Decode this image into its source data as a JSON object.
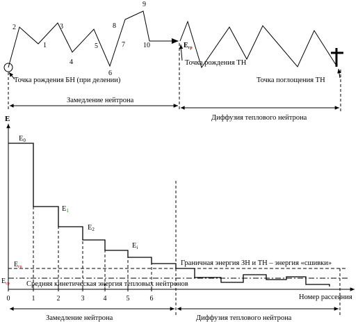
{
  "top_diagram": {
    "path_numbers": [
      "1",
      "2",
      "3",
      "4",
      "5",
      "6",
      "7",
      "8",
      "9",
      "10"
    ],
    "birth_fast": "Точка рождения БН (при делении)",
    "birth_thermal": "Точка рождения  ТН",
    "absorption_thermal": "Точка поглощения ТН",
    "energy_marker_main": "E",
    "energy_marker_sub": "гр",
    "span_slowing": "Замедление нейтрона",
    "span_diffusion": "Диффузия теплового нейтрона"
  },
  "chart_data": {
    "type": "step",
    "y_axis_label": "E",
    "x_axis_label": "Номер рассеяния",
    "x_ticks": [
      "0",
      "1",
      "2",
      "3",
      "4",
      "5",
      "6"
    ],
    "energy_labels": [
      {
        "main": "E",
        "sub": "0"
      },
      {
        "main": "E",
        "sub": "1"
      },
      {
        "main": "E",
        "sub": "2"
      },
      {
        "main": "E",
        "sub": "i"
      }
    ],
    "ref_labels": {
      "boundary_main": "E",
      "boundary_sub": "гр",
      "mean_main": "E",
      "mean_sub": "ср"
    },
    "boundary_text": "Граничная энергия ЗН и ТН – энергия «сшивки»",
    "mean_text": "Средняя кинетическая энергия тепловых нейтронов",
    "span_slowing": "Замедление нейтрона",
    "span_diffusion": "Диффузия теплового нейтрона"
  }
}
